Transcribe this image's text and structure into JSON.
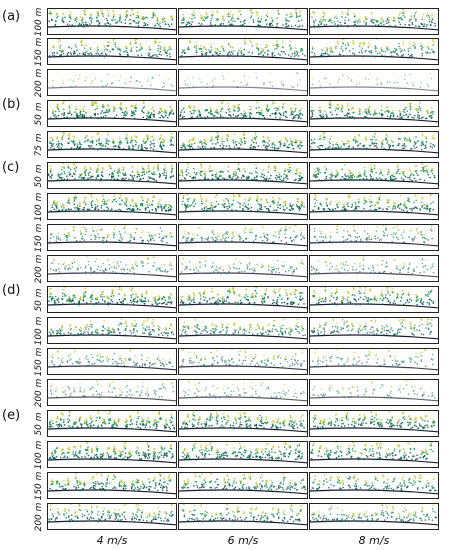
{
  "groups": [
    {
      "label": "(a)",
      "rows": [
        "100 m",
        "150 m",
        "200 m"
      ],
      "density": [
        0.9,
        0.8,
        0.15
      ]
    },
    {
      "label": "(b)",
      "rows": [
        "50 m",
        "75 m"
      ],
      "density": [
        1.0,
        0.95
      ]
    },
    {
      "label": "(c)",
      "rows": [
        "50 m",
        "100 m",
        "150 m",
        "200 m"
      ],
      "density": [
        1.0,
        0.95,
        0.6,
        0.45
      ]
    },
    {
      "label": "(d)",
      "rows": [
        "50 m",
        "100 m",
        "150 m",
        "200 m"
      ],
      "density": [
        0.95,
        0.75,
        0.5,
        0.35
      ]
    },
    {
      "label": "(e)",
      "rows": [
        "50 m",
        "100 m",
        "150 m",
        "200 m"
      ],
      "density": [
        1.0,
        0.95,
        0.85,
        0.75
      ]
    }
  ],
  "columns": [
    "4 m/s",
    "6 m/s",
    "8 m/s"
  ],
  "colors": {
    "canopy_top": "#c8c832",
    "canopy_mid": "#2a9a5a",
    "canopy_dark": "#0f5a52",
    "ground": "#1a1a2e"
  }
}
